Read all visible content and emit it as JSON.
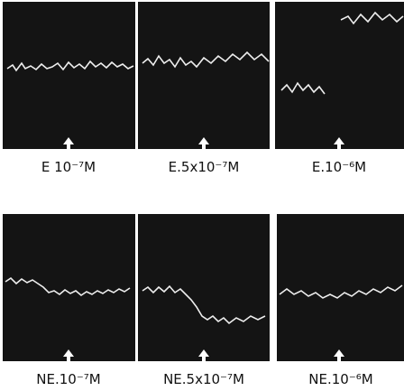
{
  "panels": [
    {
      "label": "E 10⁻⁷M"
    },
    {
      "label": "E.5x10⁻⁷M"
    },
    {
      "label": "E.10⁻⁶M"
    },
    {
      "label": "NE.10⁻⁷M"
    },
    {
      "label": "NE.5x10⁻⁷M"
    },
    {
      "label": "NE.10⁻⁶M"
    }
  ]
}
